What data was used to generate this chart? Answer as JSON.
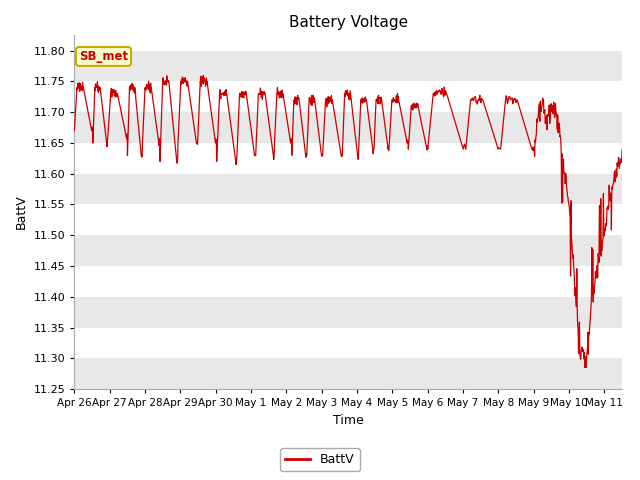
{
  "title": "Battery Voltage",
  "xlabel": "Time",
  "ylabel": "BattV",
  "ylim": [
    11.25,
    11.825
  ],
  "yticks": [
    11.25,
    11.3,
    11.35,
    11.4,
    11.45,
    11.5,
    11.55,
    11.6,
    11.65,
    11.7,
    11.75,
    11.8
  ],
  "xtick_labels": [
    "Apr 26",
    "Apr 27",
    "Apr 28",
    "Apr 29",
    "Apr 30",
    "May 1",
    "May 2",
    "May 3",
    "May 4",
    "May 5",
    "May 6",
    "May 7",
    "May 8",
    "May 9",
    "May 10",
    "May 11"
  ],
  "line_color": "#cc0000",
  "bg_color": "#ffffff",
  "band_color": "#e8e8e8",
  "legend_label": "BattV",
  "annotation_label": "SB_met",
  "annotation_bg": "#ffffcc",
  "annotation_border": "#ccaa00"
}
